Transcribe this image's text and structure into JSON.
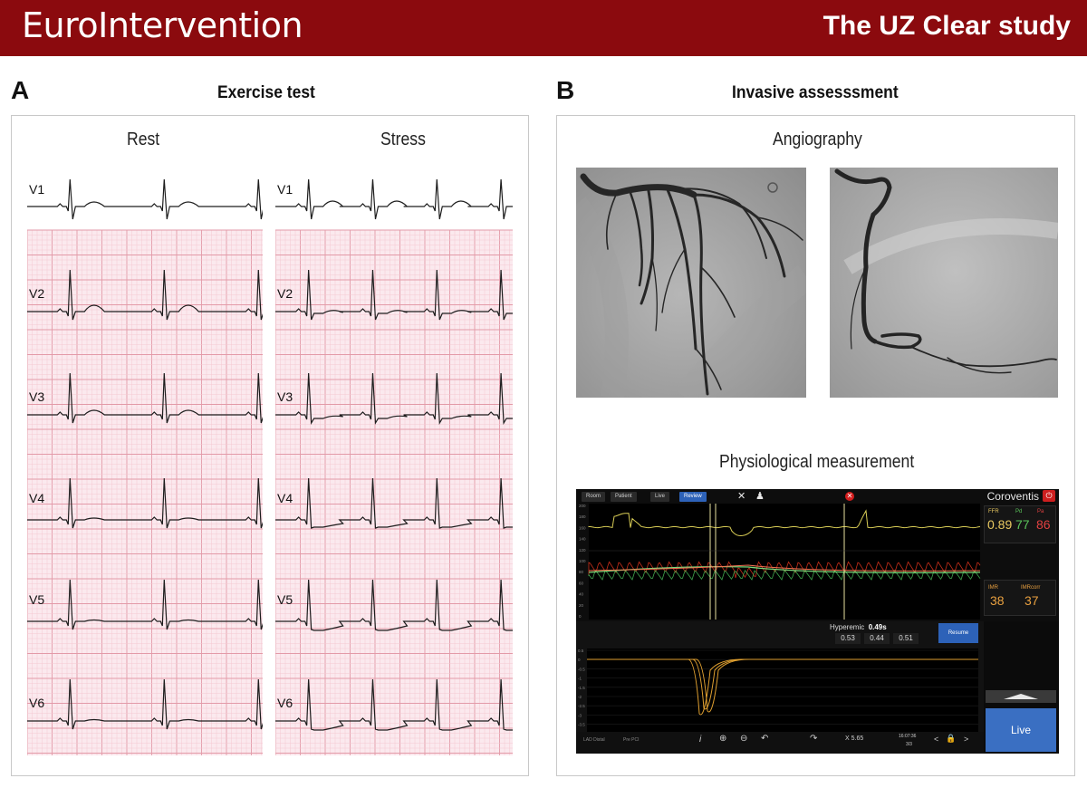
{
  "banner": {
    "brand": "EuroIntervention",
    "study": "The UZ Clear study",
    "background_color": "#8b0a0e"
  },
  "panel_a": {
    "letter": "A",
    "title": "Exercise test",
    "rest_label": "Rest",
    "stress_label": "Stress",
    "leads": [
      "V1",
      "V2",
      "V3",
      "V4",
      "V5",
      "V6"
    ]
  },
  "panel_b": {
    "letter": "B",
    "title": "Invasive assesssment",
    "angiography_label": "Angiography",
    "physiology_label": "Physiological measurement"
  },
  "monitor": {
    "tabs": [
      "Room",
      "Patient",
      "Live",
      "Review"
    ],
    "active_tab": "Review",
    "brand": "Coroventis",
    "ffr_label": "FFR",
    "ffr_value": "0.89",
    "pd_label": "Pd",
    "pd_value": "77",
    "pa_label": "Pa",
    "pa_value": "86",
    "imr_label": "IMR",
    "imr_value": "38",
    "imr_corr_label": "IMRcorr",
    "imr_corr_value": "37",
    "hyperemic_label": "Hyperemic",
    "hyperemic_value": "0.49s",
    "transit_values": [
      "0.53",
      "0.44",
      "0.51"
    ],
    "resume_label": "Resume",
    "live_label": "Live",
    "vessel_label": "LAD Distal",
    "pre_label": "Pre PCI",
    "x_readout": "X 5.65",
    "time": "16:07:36",
    "page": "3/3",
    "pressure_ticks": [
      "200",
      "180",
      "160",
      "140",
      "120",
      "100",
      "80",
      "60",
      "40",
      "20",
      "0"
    ],
    "thermo_ticks": [
      "0.5",
      "0",
      "-0.5",
      "-1",
      "-1.5",
      "-2",
      "-2.5",
      "-3",
      "-3.5"
    ],
    "colors": {
      "aortic": "#d8cc55",
      "distal_red": "#e0341e",
      "distal_green": "#48c25a",
      "thermo": "#e0a030",
      "accent": "#2d62b8"
    }
  }
}
